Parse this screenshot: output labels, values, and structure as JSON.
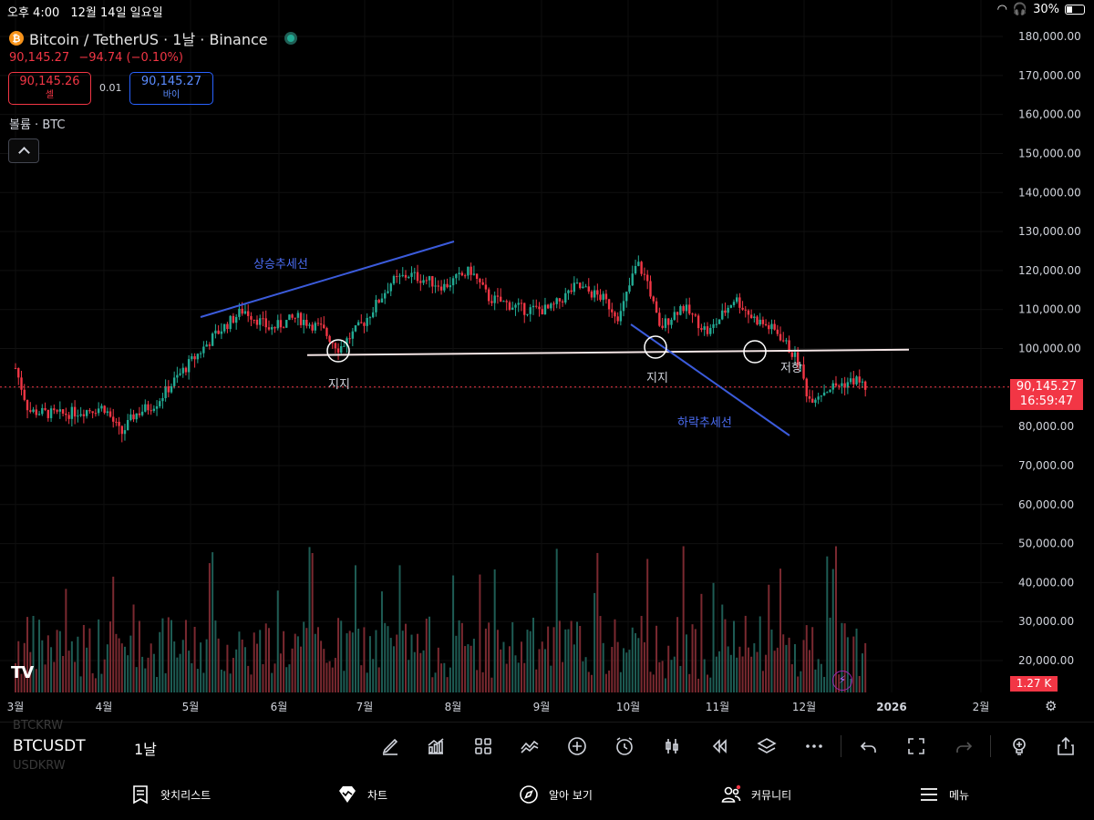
{
  "status_bar": {
    "time": "오후 4:00",
    "date": "12월 14일 일요일",
    "battery": "30%"
  },
  "header": {
    "coin_icon": "bitcoin-icon",
    "symbol_title": "Bitcoin / TetherUS · 1날 · Binance",
    "last_price": "90,145.27",
    "change": "−94.74 (−0.10%)",
    "sell_price": "90,145.26",
    "sell_label": "셀",
    "spread": "0.01",
    "buy_price": "90,145.27",
    "buy_label": "바이",
    "volume_label": "볼륨 · BTC"
  },
  "price_tag": {
    "price": "90,145.27",
    "countdown": "16:59:47"
  },
  "volume_tag": "1.27 K",
  "colors": {
    "up": "#22ab94",
    "down": "#f23645",
    "uptrend": "#3b5bdb",
    "support": "#f5e6e6"
  },
  "chart_data": {
    "type": "candlestick",
    "timeframe": "1D",
    "price_axis": {
      "ticks": [
        "180,000.00",
        "170,000.00",
        "160,000.00",
        "150,000.00",
        "140,000.00",
        "130,000.00",
        "120,000.00",
        "110,000.00",
        "100,000.00",
        "90,000.00",
        "80,000.00",
        "70,000.00",
        "60,000.00",
        "50,000.00",
        "40,000.00",
        "30,000.00",
        "20,000.00"
      ],
      "values": [
        180000,
        170000,
        160000,
        150000,
        140000,
        130000,
        120000,
        110000,
        100000,
        90000,
        80000,
        70000,
        60000,
        50000,
        40000,
        30000,
        20000
      ]
    },
    "time_axis": [
      "3월",
      "4월",
      "5월",
      "6월",
      "7월",
      "8월",
      "9월",
      "10월",
      "11월",
      "12월",
      "2026",
      "2월"
    ],
    "monthly_anchors": [
      {
        "month": "3월",
        "close": 84000
      },
      {
        "month": "4월",
        "close": 78000
      },
      {
        "month": "5월",
        "close": 96000
      },
      {
        "month": "6월",
        "close": 107000
      },
      {
        "month": "7월",
        "close": 104000
      },
      {
        "month": "8월",
        "close": 118000
      },
      {
        "month": "9월",
        "close": 109000
      },
      {
        "month": "10월",
        "close": 117000
      },
      {
        "month": "11월",
        "close": 110000
      },
      {
        "month": "12월",
        "close": 90145.27
      }
    ],
    "annotations": [
      {
        "label": "상승추세선",
        "type": "trendline",
        "color": "#3b5bdb"
      },
      {
        "label": "하락추세선",
        "type": "trendline",
        "color": "#3b5bdb"
      },
      {
        "label": "지지",
        "type": "support"
      },
      {
        "label": "지지",
        "type": "support"
      },
      {
        "label": "저항",
        "type": "resistance"
      }
    ],
    "support_level": 99000,
    "last_price": 90145.27
  },
  "toolbar": {
    "ticker": "BTCUSDT",
    "ticker_above": "BTCKRW",
    "ticker_below": "USDKRW",
    "interval": "1날"
  },
  "bottom_nav": [
    {
      "label": "왓치리스트",
      "icon": "watchlist-icon"
    },
    {
      "label": "차트",
      "icon": "chart-icon"
    },
    {
      "label": "알아 보기",
      "icon": "compass-icon"
    },
    {
      "label": "커뮤니티",
      "icon": "community-icon"
    },
    {
      "label": "메뉴",
      "icon": "menu-icon"
    }
  ]
}
